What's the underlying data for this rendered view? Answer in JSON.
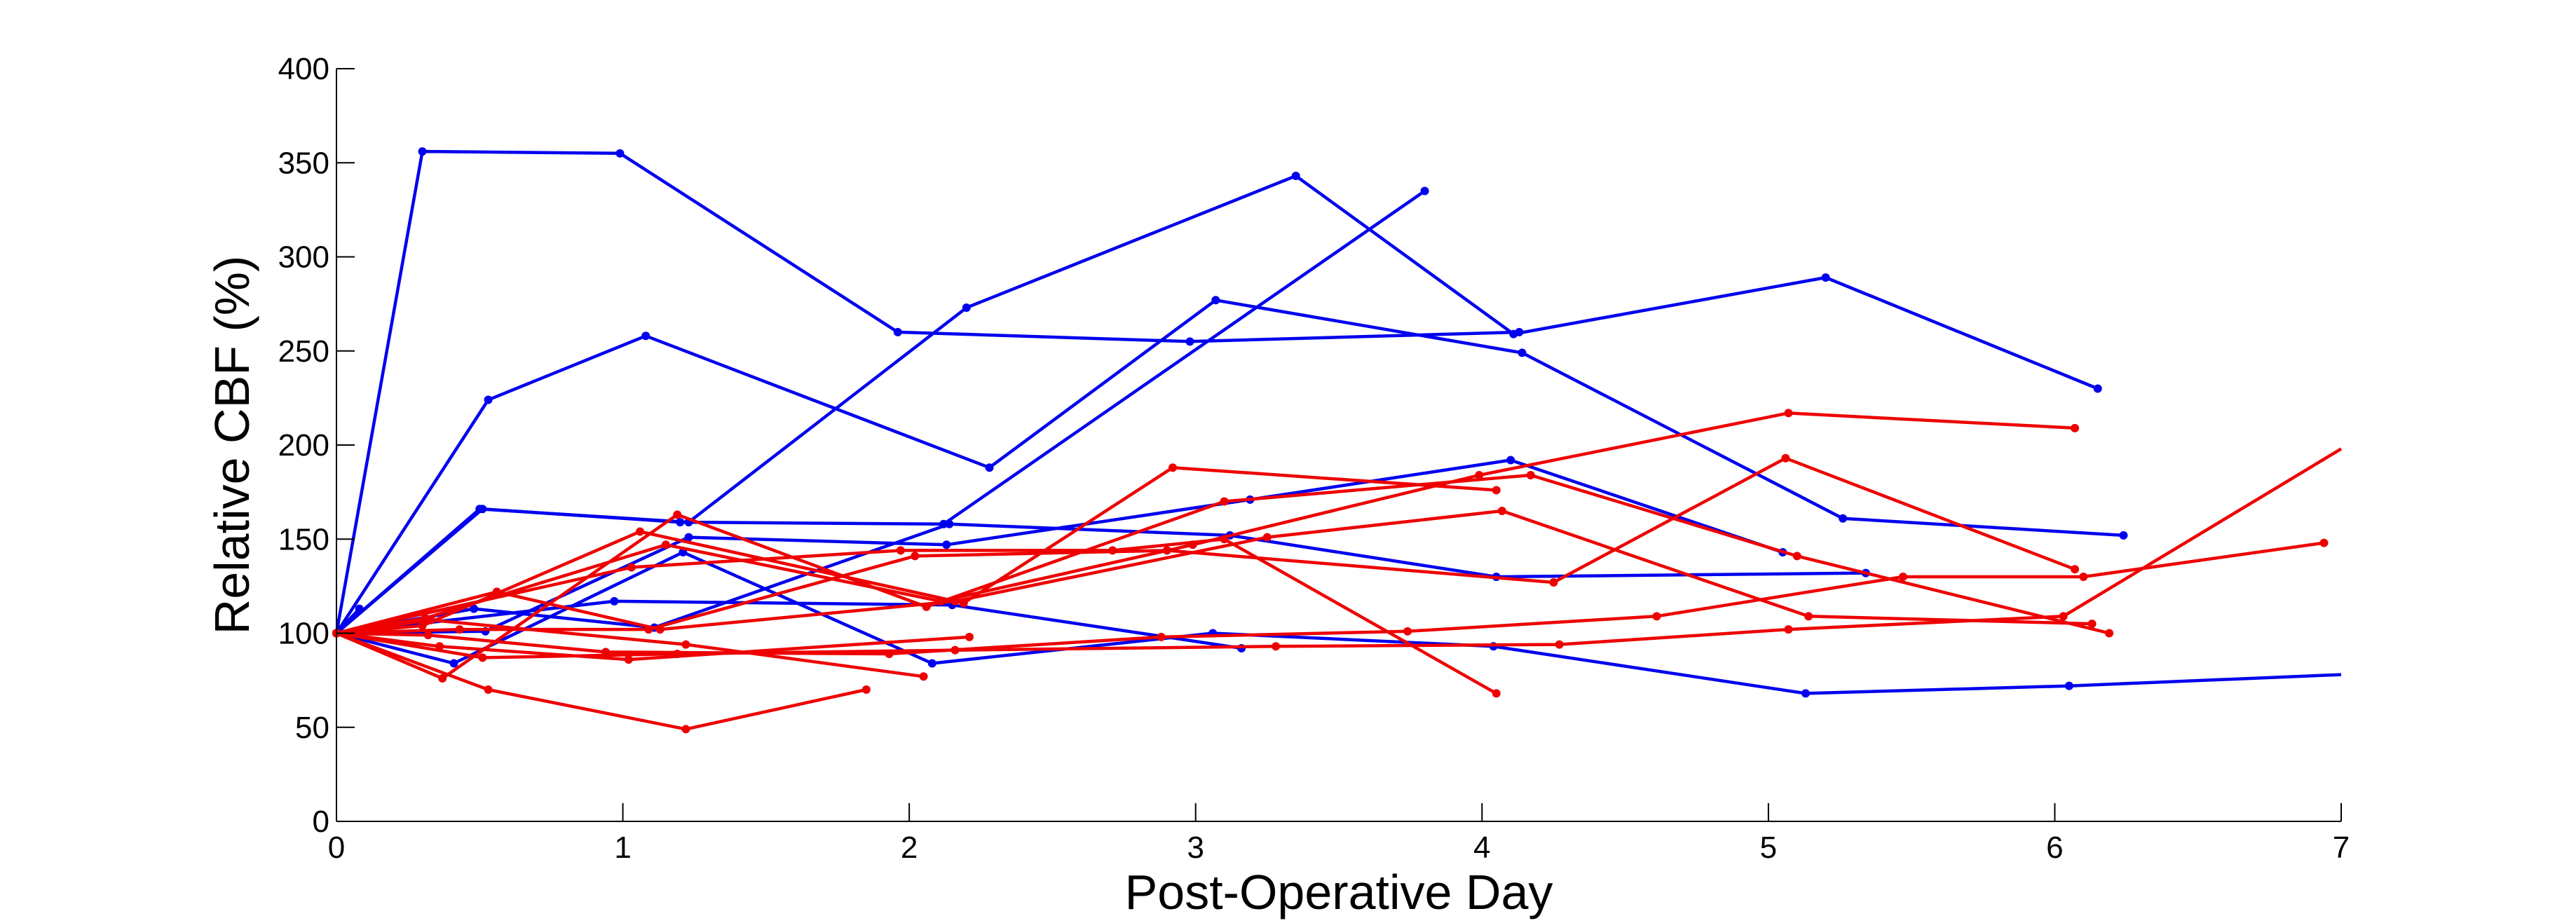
{
  "chart_data": {
    "type": "line",
    "xlabel": "Post-Operative Day",
    "ylabel": "Relative CBF (%)",
    "xlim": [
      0,
      7
    ],
    "ylim": [
      0,
      400
    ],
    "x_ticks": [
      0,
      1,
      2,
      3,
      4,
      5,
      6,
      7
    ],
    "y_ticks": [
      0,
      50,
      100,
      150,
      200,
      250,
      300,
      350,
      400
    ],
    "grid": false,
    "legend": "none",
    "colors": {
      "blue": "#0000ee",
      "red": "#ee0000",
      "axis": "#000000"
    },
    "series": [
      {
        "color": "blue",
        "x": [
          0,
          0.3,
          0.99,
          1.96,
          2.98,
          4.13
        ],
        "y": [
          100,
          356,
          355,
          260,
          255,
          260
        ]
      },
      {
        "color": "blue",
        "x": [
          0,
          0.08
        ],
        "y": [
          100,
          113
        ]
      },
      {
        "color": "blue",
        "x": [
          0,
          0.53,
          1.08,
          2.28,
          3.07,
          4.14,
          5.26,
          6.24
        ],
        "y": [
          100,
          224,
          258,
          188,
          277,
          249,
          161,
          152
        ]
      },
      {
        "color": "blue",
        "x": [
          0,
          0.5,
          1.23,
          2.2,
          3.35,
          4.11,
          5.2,
          6.15
        ],
        "y": [
          100,
          166,
          159,
          273,
          343,
          259,
          289,
          230
        ]
      },
      {
        "color": "blue",
        "x": [
          0,
          0.52,
          1.23,
          2.13,
          3.19,
          4.1,
          5.05
        ],
        "y": [
          100,
          101,
          151,
          147,
          171,
          192,
          143
        ]
      },
      {
        "color": "blue",
        "x": [
          0,
          0.51,
          1.2,
          2.12,
          3.8
        ],
        "y": [
          100,
          166,
          159,
          158,
          335
        ]
      },
      {
        "color": "blue",
        "x": [
          0,
          0.48,
          1.11,
          2.14,
          3.12,
          4.05,
          5.34
        ],
        "y": [
          100,
          113,
          103,
          158,
          152,
          130,
          132
        ]
      },
      {
        "color": "blue",
        "x": [
          0,
          0.97,
          2.15,
          3.16
        ],
        "y": [
          100,
          117,
          115,
          92
        ]
      },
      {
        "color": "blue",
        "x": [
          0,
          0.41,
          1.21,
          2.08,
          3.06,
          4.04,
          5.13,
          6.05,
          7
        ],
        "y": [
          100,
          84,
          143,
          84,
          100,
          93,
          68,
          72,
          78
        ]
      },
      {
        "color": "red",
        "x": [
          0,
          0.3,
          1.06,
          2.19,
          2.92,
          4.05
        ],
        "y": [
          100,
          104,
          154,
          116,
          188,
          176
        ]
      },
      {
        "color": "red",
        "x": [
          0,
          1.03,
          1.97,
          2.71,
          3.1,
          4.05
        ],
        "y": [
          100,
          135,
          144,
          144,
          150,
          68
        ]
      },
      {
        "color": "red",
        "x": [
          0,
          0.56,
          1.13,
          2.16,
          3.25,
          4.07,
          5.14,
          6.13
        ],
        "y": [
          100,
          122,
          102,
          117,
          151,
          165,
          109,
          105
        ]
      },
      {
        "color": "red",
        "x": [
          0,
          0.31,
          1.15,
          2.11,
          2.99,
          3.99,
          5.07,
          6.07
        ],
        "y": [
          100,
          108,
          147,
          117,
          147,
          184,
          217,
          209
        ]
      },
      {
        "color": "red",
        "x": [
          0,
          0.37,
          1.19,
          2.06,
          3.1,
          4.17,
          5.1,
          6.19
        ],
        "y": [
          100,
          76,
          163,
          114,
          170,
          184,
          141,
          100
        ]
      },
      {
        "color": "red",
        "x": [
          0,
          0.43,
          1.09,
          2.02,
          2.9,
          4.25,
          5.06,
          6.07
        ],
        "y": [
          100,
          102,
          102,
          141,
          144,
          127,
          193,
          134
        ]
      },
      {
        "color": "red",
        "x": [
          0,
          0.32,
          0.94,
          1.93,
          2.88,
          3.74,
          4.61,
          5.47,
          6.1,
          6.94
        ],
        "y": [
          100,
          99,
          90,
          89,
          98,
          101,
          109,
          130,
          130,
          148
        ]
      },
      {
        "color": "red",
        "x": [
          0,
          0.51,
          1.19,
          2.16,
          3.28,
          4.27,
          5.07,
          6.03,
          7
        ],
        "y": [
          100,
          87,
          89,
          91,
          93,
          94,
          102,
          109,
          198
        ]
      },
      {
        "color": "red",
        "x": [
          0,
          0.36,
          1.02,
          2.21
        ],
        "y": [
          100,
          93,
          86,
          98
        ]
      },
      {
        "color": "red",
        "x": [
          0,
          0.53,
          1.22,
          1.85
        ],
        "y": [
          100,
          70,
          49,
          70
        ]
      },
      {
        "color": "red",
        "x": [
          0,
          0.33,
          1.22,
          2.05
        ],
        "y": [
          100,
          107,
          94,
          77
        ]
      }
    ]
  }
}
